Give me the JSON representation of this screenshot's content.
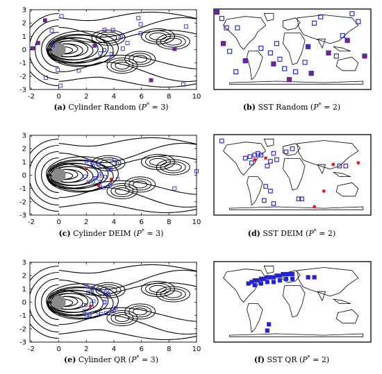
{
  "figure": {
    "cylinder_axis": {
      "x_ticks": [
        "-2",
        "0",
        "2",
        "4",
        "6",
        "8",
        "10"
      ],
      "y_ticks": [
        "3",
        "2",
        "1",
        "0",
        "-1",
        "-2",
        "-3"
      ]
    },
    "panels": [
      {
        "id": "a",
        "kind": "cylinder",
        "label": "(a)",
        "text": " Cylinder Random (",
        "p": "P",
        "sup": "*",
        "eq": " = 3)"
      },
      {
        "id": "b",
        "kind": "sst",
        "label": "(b)",
        "text": " SST Random (",
        "p": "P",
        "sup": "*",
        "eq": " = 2)"
      },
      {
        "id": "c",
        "kind": "cylinder",
        "label": "(c)",
        "text": " Cylinder DEIM (",
        "p": "P",
        "sup": "*",
        "eq": " = 3)"
      },
      {
        "id": "d",
        "kind": "sst",
        "label": "(d)",
        "text": " SST DEIM (",
        "p": "P",
        "sup": "*",
        "eq": " = 2)"
      },
      {
        "id": "e",
        "kind": "cylinder",
        "label": "(e)",
        "text": " Cylinder QR (",
        "p": "P",
        "sup": "*",
        "eq": " = 3)"
      },
      {
        "id": "f",
        "kind": "sst",
        "label": "(f)",
        "text": " SST QR (",
        "p": "P",
        "sup": "*",
        "eq": " = 2)"
      }
    ],
    "colors": {
      "sensor_outline": "#2b2bc8",
      "sensor_fill_purple": "#8c1e78",
      "deim_red": "#e81818",
      "cylinder_gray": "#8a8a8a",
      "qr_blue": "#2020d8"
    }
  }
}
